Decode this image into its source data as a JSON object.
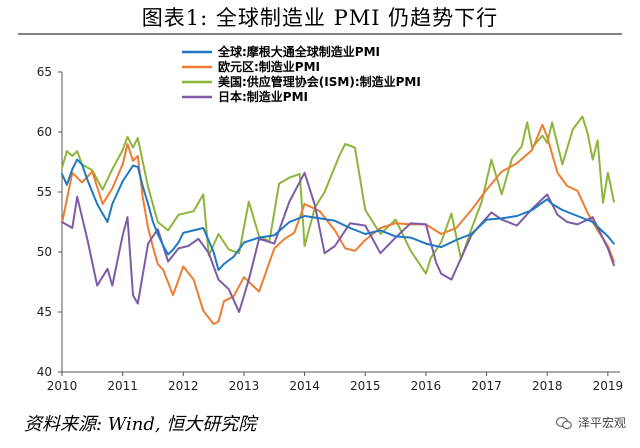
{
  "title": "图表1: 全球制造业 PMI 仍趋势下行",
  "source": "资料来源: Wind, 恒大研究院",
  "watermark": "泽平宏观",
  "chart_data": {
    "type": "line",
    "title": "",
    "xlabel": "",
    "ylabel": "",
    "xlim": [
      2010,
      2019.2
    ],
    "ylim": [
      40,
      65
    ],
    "x_ticks": [
      "2010",
      "2011",
      "2012",
      "2013",
      "2014",
      "2015",
      "2016",
      "2017",
      "2018",
      "2019"
    ],
    "y_ticks": [
      "40",
      "45",
      "50",
      "55",
      "60",
      "65"
    ],
    "grid": false,
    "legend_position": "top-center",
    "series": [
      {
        "name": "全球:摩根大通全球制造业PMI",
        "color": "#1f78c1",
        "x": [
          2010.0,
          2010.08,
          2010.17,
          2010.25,
          2010.33,
          2010.42,
          2010.5,
          2010.58,
          2010.67,
          2010.75,
          2010.83,
          2010.92,
          2011.0,
          2011.08,
          2011.17,
          2011.25,
          2011.33,
          2011.42,
          2011.5,
          2011.58,
          2011.67,
          2011.75,
          2011.83,
          2011.92,
          2012.0,
          2012.17,
          2012.33,
          2012.5,
          2012.58,
          2012.67,
          2012.83,
          2013.0,
          2013.25,
          2013.5,
          2013.75,
          2014.0,
          2014.25,
          2014.5,
          2014.75,
          2015.0,
          2015.25,
          2015.5,
          2015.75,
          2016.0,
          2016.25,
          2016.5,
          2016.75,
          2017.0,
          2017.25,
          2017.5,
          2017.75,
          2018.0,
          2018.08,
          2018.25,
          2018.5,
          2018.75,
          2019.0,
          2019.1
        ],
        "y": [
          56.5,
          55.6,
          56.9,
          57.7,
          57.3,
          56.0,
          55.0,
          54.0,
          53.2,
          52.5,
          54.0,
          55.0,
          55.9,
          56.5,
          57.2,
          57.1,
          55.5,
          54.0,
          52.5,
          51.5,
          50.5,
          49.8,
          50.2,
          50.8,
          51.6,
          51.8,
          52.0,
          50.0,
          48.5,
          49.0,
          49.6,
          50.8,
          51.2,
          51.4,
          52.5,
          53.0,
          52.8,
          52.6,
          52.0,
          51.5,
          51.8,
          51.3,
          51.2,
          50.7,
          50.4,
          51.0,
          51.5,
          52.7,
          52.8,
          53.0,
          53.5,
          54.4,
          54.0,
          53.5,
          53.0,
          52.5,
          51.3,
          50.7
        ]
      },
      {
        "name": "欧元区:制造业PMI",
        "color": "#ed7d31",
        "x": [
          2010.0,
          2010.17,
          2010.33,
          2010.5,
          2010.67,
          2010.83,
          2011.0,
          2011.08,
          2011.17,
          2011.25,
          2011.33,
          2011.42,
          2011.5,
          2011.58,
          2011.67,
          2011.83,
          2012.0,
          2012.17,
          2012.33,
          2012.5,
          2012.58,
          2012.67,
          2012.83,
          2013.0,
          2013.25,
          2013.5,
          2013.67,
          2013.83,
          2014.0,
          2014.25,
          2014.5,
          2014.67,
          2014.83,
          2015.0,
          2015.25,
          2015.5,
          2015.75,
          2016.0,
          2016.25,
          2016.5,
          2016.75,
          2017.0,
          2017.25,
          2017.5,
          2017.75,
          2017.92,
          2018.0,
          2018.17,
          2018.33,
          2018.5,
          2018.67,
          2018.83,
          2019.0,
          2019.1
        ],
        "y": [
          52.4,
          56.6,
          55.8,
          56.7,
          54.0,
          55.3,
          57.3,
          59.0,
          57.6,
          58.0,
          54.6,
          52.0,
          50.4,
          49.0,
          48.5,
          46.4,
          48.8,
          47.7,
          45.1,
          44.0,
          44.2,
          45.9,
          46.3,
          47.9,
          46.7,
          50.3,
          51.1,
          51.6,
          54.0,
          53.4,
          51.8,
          50.3,
          50.1,
          51.0,
          52.0,
          52.4,
          52.3,
          52.3,
          51.5,
          52.0,
          53.5,
          55.2,
          56.7,
          57.4,
          58.5,
          60.6,
          59.6,
          56.6,
          55.5,
          55.1,
          53.2,
          51.8,
          50.5,
          49.2
        ]
      },
      {
        "name": "美国:供应管理协会(ISM):制造业PMI",
        "color": "#8db53c",
        "x": [
          2010.0,
          2010.08,
          2010.17,
          2010.25,
          2010.33,
          2010.5,
          2010.67,
          2010.83,
          2011.0,
          2011.08,
          2011.17,
          2011.25,
          2011.42,
          2011.58,
          2011.75,
          2011.92,
          2012.17,
          2012.33,
          2012.42,
          2012.58,
          2012.75,
          2012.92,
          2013.08,
          2013.25,
          2013.42,
          2013.58,
          2013.75,
          2013.92,
          2014.0,
          2014.17,
          2014.33,
          2014.5,
          2014.58,
          2014.67,
          2014.83,
          2015.0,
          2015.25,
          2015.5,
          2015.75,
          2016.0,
          2016.08,
          2016.25,
          2016.42,
          2016.58,
          2016.75,
          2016.92,
          2017.08,
          2017.25,
          2017.42,
          2017.58,
          2017.67,
          2017.75,
          2017.92,
          2018.0,
          2018.08,
          2018.25,
          2018.42,
          2018.58,
          2018.67,
          2018.75,
          2018.83,
          2018.92,
          2019.0,
          2019.1
        ],
        "y": [
          57.0,
          58.4,
          58.0,
          58.4,
          57.3,
          56.8,
          55.2,
          56.9,
          58.5,
          59.6,
          58.7,
          59.5,
          55.4,
          52.5,
          51.8,
          53.1,
          53.4,
          54.8,
          49.7,
          51.5,
          50.2,
          49.9,
          54.2,
          51.3,
          50.9,
          55.7,
          56.2,
          56.5,
          50.5,
          53.7,
          55.0,
          57.1,
          58.1,
          59.0,
          58.7,
          53.5,
          51.5,
          52.7,
          50.1,
          48.2,
          49.5,
          50.8,
          53.2,
          49.4,
          51.9,
          54.2,
          57.7,
          54.8,
          57.8,
          58.8,
          60.8,
          58.7,
          59.7,
          59.1,
          60.8,
          57.3,
          60.2,
          61.3,
          59.8,
          57.7,
          59.3,
          54.1,
          56.6,
          54.2
        ]
      },
      {
        "name": "日本:制造业PMI",
        "color": "#7d5ba6",
        "x": [
          2010.0,
          2010.17,
          2010.25,
          2010.42,
          2010.58,
          2010.75,
          2010.83,
          2011.0,
          2011.08,
          2011.17,
          2011.25,
          2011.42,
          2011.58,
          2011.75,
          2011.92,
          2012.08,
          2012.25,
          2012.42,
          2012.58,
          2012.75,
          2012.92,
          2013.08,
          2013.25,
          2013.5,
          2013.75,
          2014.0,
          2014.17,
          2014.33,
          2014.5,
          2014.75,
          2015.0,
          2015.25,
          2015.5,
          2015.75,
          2016.0,
          2016.17,
          2016.25,
          2016.42,
          2016.58,
          2016.75,
          2016.92,
          2017.08,
          2017.25,
          2017.5,
          2017.75,
          2018.0,
          2018.17,
          2018.33,
          2018.5,
          2018.75,
          2019.0,
          2019.1
        ],
        "y": [
          52.5,
          52.0,
          54.6,
          51.0,
          47.2,
          48.6,
          47.2,
          51.4,
          52.9,
          46.4,
          45.7,
          50.7,
          51.9,
          49.2,
          50.3,
          50.5,
          51.1,
          49.9,
          47.7,
          46.9,
          45.0,
          47.7,
          51.1,
          50.7,
          54.2,
          56.6,
          53.9,
          49.9,
          50.5,
          52.4,
          52.2,
          49.9,
          51.2,
          52.4,
          52.3,
          49.1,
          48.2,
          47.7,
          49.5,
          51.4,
          52.4,
          53.3,
          52.7,
          52.2,
          53.6,
          54.8,
          53.1,
          52.5,
          52.3,
          52.9,
          50.3,
          48.9
        ]
      }
    ]
  }
}
